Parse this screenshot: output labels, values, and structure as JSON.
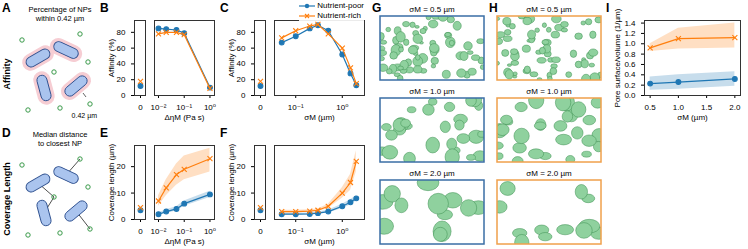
{
  "chart_data": [
    {
      "panel_label": "B",
      "type": "line",
      "xlabel": "ΔηM (Pa s)",
      "ylabel": "Affinity (%)",
      "log": "x",
      "xlim": [
        0.007,
        1.5
      ],
      "xticks": [
        {
          "value": 0.01,
          "label": "10⁻²"
        },
        {
          "value": 0.1,
          "label": "10⁻¹"
        },
        {
          "value": 1,
          "label": "10⁰"
        }
      ],
      "ylim": [
        0,
        95
      ],
      "yticks": [
        0,
        20,
        40,
        60,
        80
      ],
      "zero_x": 0,
      "x": [
        0.01,
        0.02,
        0.05,
        0.1,
        1.0
      ],
      "series": [
        {
          "color": "#1f77b4",
          "marker": "circle",
          "values": [
            85,
            84,
            83,
            79,
            10
          ],
          "zero_value": 12
        },
        {
          "color": "#ff7f0e",
          "marker": "x",
          "values": [
            78,
            80,
            80,
            77,
            9
          ],
          "zero_value": 18
        }
      ]
    },
    {
      "panel_label": "C",
      "type": "line",
      "xlabel": "σM (µm)",
      "ylabel": "Affinity (%)",
      "log": "x",
      "legend": "top-right",
      "xlim": [
        0.035,
        3
      ],
      "xticks": [
        {
          "value": 0.1,
          "label": "10⁻¹"
        },
        {
          "value": 1,
          "label": "10⁰"
        }
      ],
      "ylim": [
        0,
        95
      ],
      "yticks": [
        0,
        20,
        40,
        60,
        80
      ],
      "zero_x": 0,
      "x": [
        0.05,
        0.1,
        0.2,
        0.3,
        0.5,
        1.0,
        1.5,
        2.0
      ],
      "series": [
        {
          "name": "Nutrient-poor",
          "color": "#1f77b4",
          "marker": "circle",
          "values": [
            67,
            75,
            85,
            89,
            82,
            52,
            28,
            13
          ],
          "zero_value": 12
        },
        {
          "name": "Nutrient-rich",
          "color": "#ff7f0e",
          "marker": "x",
          "values": [
            73,
            82,
            88,
            90,
            78,
            60,
            35,
            15
          ],
          "zero_value": 18
        }
      ]
    },
    {
      "panel_label": "E",
      "type": "line",
      "xlabel": "ΔηM (Pa s)",
      "ylabel": "Coverage length (µm)",
      "log": "x",
      "xlim": [
        0.007,
        1.5
      ],
      "xticks": [
        {
          "value": 0.01,
          "label": "10⁻²"
        },
        {
          "value": 0.1,
          "label": "10⁻¹"
        },
        {
          "value": 1,
          "label": "10⁰"
        }
      ],
      "ylim": [
        0,
        28
      ],
      "yticks": [
        0,
        10,
        20
      ],
      "zero_x": 0,
      "x": [
        0.01,
        0.02,
        0.05,
        0.1,
        1.0
      ],
      "series": [
        {
          "color": "#1f77b4",
          "marker": "circle",
          "values": [
            2,
            3,
            4,
            6,
            9.5
          ],
          "lower": [
            1.5,
            2.3,
            3.2,
            5,
            8.3
          ],
          "upper": [
            2.5,
            3.7,
            4.8,
            7,
            10.7
          ],
          "zero_value": 3.5
        },
        {
          "color": "#ff7f0e",
          "marker": "x",
          "values": [
            7,
            12,
            17,
            19,
            23
          ],
          "lower": [
            5,
            9,
            13,
            15,
            18
          ],
          "upper": [
            9,
            15,
            21,
            24,
            27
          ],
          "zero_value": 4.5
        }
      ]
    },
    {
      "panel_label": "F",
      "type": "line",
      "xlabel": "σM (µm)",
      "ylabel": "Coverage length (µm)",
      "log": "x",
      "xlim": [
        0.035,
        3
      ],
      "xticks": [
        {
          "value": 0.1,
          "label": "10⁻¹"
        },
        {
          "value": 1,
          "label": "10⁰"
        }
      ],
      "ylim": [
        0,
        28
      ],
      "yticks": [
        0,
        10,
        20
      ],
      "zero_x": 0,
      "x": [
        0.05,
        0.1,
        0.2,
        0.3,
        0.5,
        1.0,
        1.5,
        2.0
      ],
      "series": [
        {
          "color": "#1f77b4",
          "marker": "circle",
          "values": [
            2,
            2,
            2.1,
            2.4,
            3,
            5,
            6.5,
            8
          ],
          "lower": [
            1.6,
            1.6,
            1.7,
            2,
            2.5,
            4.2,
            5.5,
            7
          ],
          "upper": [
            2.4,
            2.4,
            2.5,
            2.8,
            3.5,
            5.8,
            7.5,
            9
          ],
          "zero_value": 3.5
        },
        {
          "color": "#ff7f0e",
          "marker": "x",
          "values": [
            3,
            3,
            3.2,
            3.5,
            5,
            10,
            14,
            22
          ],
          "lower": [
            2.5,
            2.5,
            2.7,
            3,
            4.2,
            8,
            11,
            18
          ],
          "upper": [
            3.5,
            3.5,
            3.7,
            4,
            5.8,
            12,
            17,
            26
          ],
          "zero_value": 4.5
        }
      ]
    },
    {
      "panel_label": "I",
      "type": "line",
      "xlabel": "σM (µm)",
      "ylabel": "Pore surface/volume (1/µm)",
      "xlim": [
        0.4,
        2.1
      ],
      "xticks": [
        0.5,
        {
          "value": 1,
          "label": "1.0"
        },
        1.5,
        {
          "value": 2,
          "label": "2.0"
        }
      ],
      "ylim": [
        0,
        1.45
      ],
      "yticks": [
        {
          "value": 0,
          "label": "0.0"
        },
        0.2,
        0.4,
        0.6,
        0.8,
        {
          "value": 1,
          "label": "1.0"
        },
        1.2,
        1.4
      ],
      "x": [
        0.5,
        1.0,
        2.0
      ],
      "series": [
        {
          "color": "#1f77b4",
          "marker": "circle",
          "values": [
            0.23,
            0.26,
            0.32
          ],
          "lower": [
            0.1,
            0.12,
            0.18
          ],
          "upper": [
            0.36,
            0.4,
            0.46
          ]
        },
        {
          "color": "#ff7f0e",
          "marker": "x",
          "values": [
            0.92,
            1.1,
            1.12
          ],
          "lower": [
            0.85,
            0.9,
            0.92
          ],
          "upper": [
            1.0,
            1.3,
            1.4
          ]
        }
      ]
    }
  ],
  "diagrams": [
    {
      "panel_label": "A",
      "side_title": "Affinity",
      "caption": [
        "Percentage of NPs",
        "within 0.42 µm"
      ],
      "distance_label": "0.42 µm"
    },
    {
      "panel_label": "D",
      "side_title": "Coverage Length",
      "caption": [
        "Median distance",
        "to closest NP"
      ]
    }
  ],
  "renders": [
    {
      "panel_label": "G",
      "color": "#3a6ea5",
      "labels": [
        "σM = 0.5 µm",
        "σM = 1.0 µm",
        "σM = 2.0 µm"
      ]
    },
    {
      "panel_label": "H",
      "color": "#f0a04b",
      "labels": [
        "σM = 0.5 µm",
        "σM = 1.0 µm",
        "σM = 2.0 µm"
      ]
    }
  ]
}
